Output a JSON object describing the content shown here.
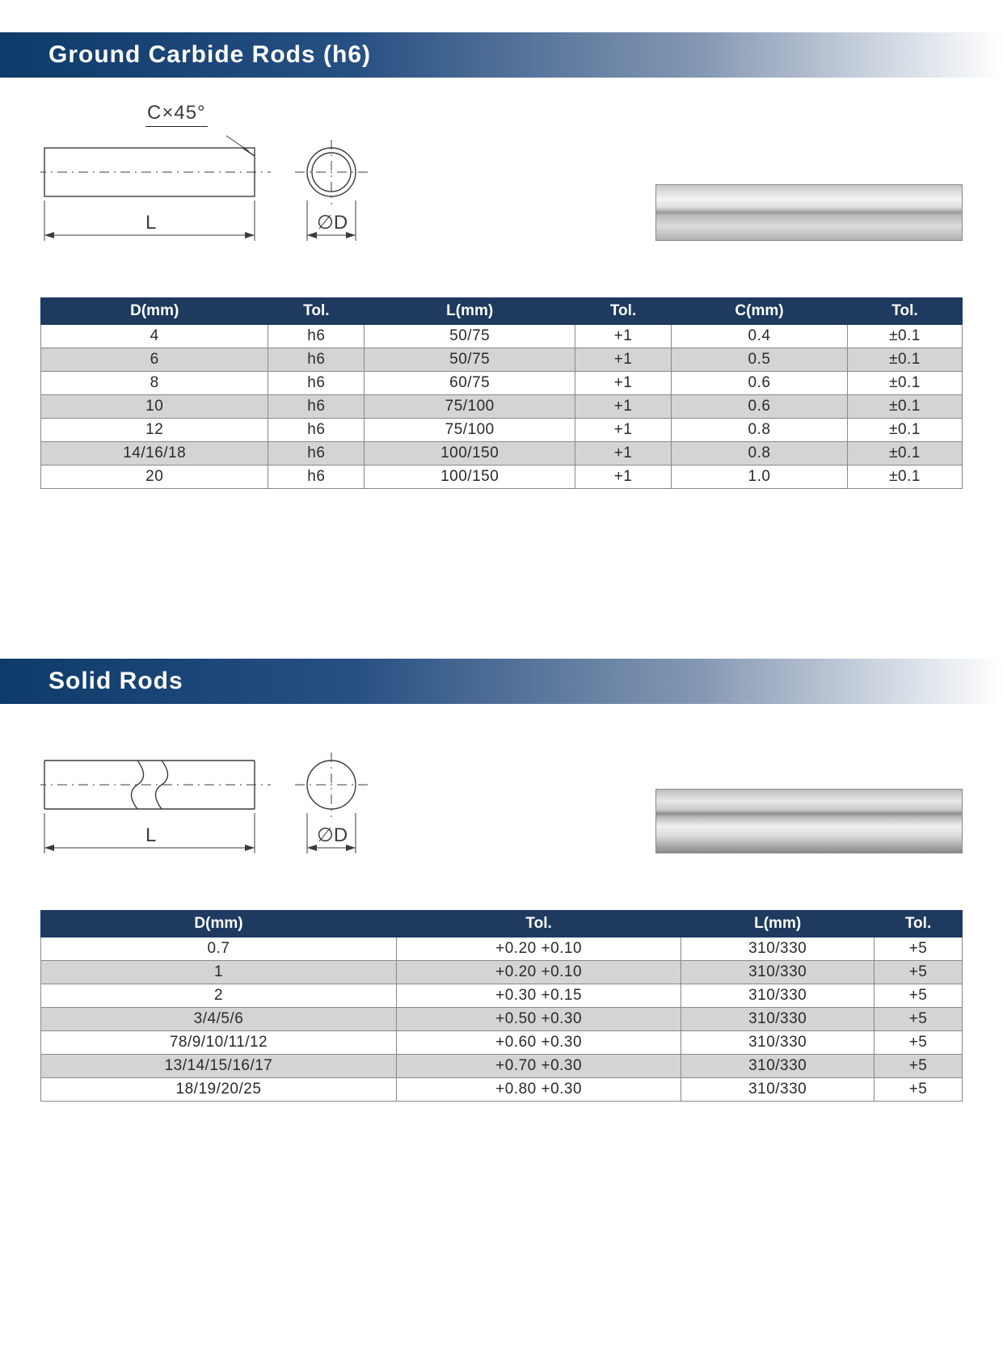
{
  "section1": {
    "title": "Ground Carbide Rods (h6)",
    "header_gradient": [
      "#0e3b6a",
      "#264f82",
      "#8598b3",
      "#ffffff"
    ],
    "chamfer_label": "C×45°",
    "length_label": "L",
    "diameter_label": "∅D",
    "table": {
      "header_bg": "#1e3a5f",
      "row_odd_bg": "#ffffff",
      "row_even_bg": "#d4d4d4",
      "columns": [
        "D(mm)",
        "Tol.",
        "L(mm)",
        "Tol.",
        "C(mm)",
        "Tol."
      ],
      "rows": [
        [
          "4",
          "h6",
          "50/75",
          "+1",
          "0.4",
          "±0.1"
        ],
        [
          "6",
          "h6",
          "50/75",
          "+1",
          "0.5",
          "±0.1"
        ],
        [
          "8",
          "h6",
          "60/75",
          "+1",
          "0.6",
          "±0.1"
        ],
        [
          "10",
          "h6",
          "75/100",
          "+1",
          "0.6",
          "±0.1"
        ],
        [
          "12",
          "h6",
          "75/100",
          "+1",
          "0.8",
          "±0.1"
        ],
        [
          "14/16/18",
          "h6",
          "100/150",
          "+1",
          "0.8",
          "±0.1"
        ],
        [
          "20",
          "h6",
          "100/150",
          "+1",
          "1.0",
          "±0.1"
        ]
      ]
    }
  },
  "section2": {
    "title": "Solid Rods",
    "header_gradient": [
      "#0e3b6a",
      "#264f82",
      "#8598b3",
      "#ffffff"
    ],
    "length_label": "L",
    "diameter_label": "∅D",
    "table": {
      "header_bg": "#1e3a5f",
      "row_odd_bg": "#ffffff",
      "row_even_bg": "#d4d4d4",
      "columns": [
        "D(mm)",
        "Tol.",
        "L(mm)",
        "Tol."
      ],
      "rows": [
        [
          "0.7",
          "+0.20   +0.10",
          "310/330",
          "+5"
        ],
        [
          "1",
          "+0.20   +0.10",
          "310/330",
          "+5"
        ],
        [
          "2",
          "+0.30   +0.15",
          "310/330",
          "+5"
        ],
        [
          "3/4/5/6",
          "+0.50   +0.30",
          "310/330",
          "+5"
        ],
        [
          "78/9/10/11/12",
          "+0.60   +0.30",
          "310/330",
          "+5"
        ],
        [
          "13/14/15/16/17",
          "+0.70   +0.30",
          "310/330",
          "+5"
        ],
        [
          "18/19/20/25",
          "+0.80   +0.30",
          "310/330",
          "+5"
        ]
      ]
    }
  },
  "diagram_style": {
    "stroke": "#3c3c3c",
    "stroke_width": 1.4,
    "dash": "10,5,2,5"
  }
}
